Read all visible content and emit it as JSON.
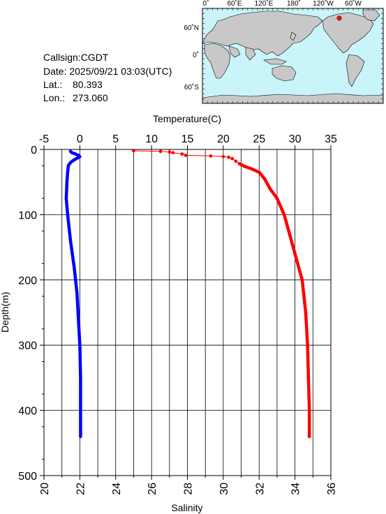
{
  "info": {
    "callsign": "Callsign:CGDT",
    "date": "Date:  2025/09/21 03:03(UTC)",
    "lat_label": "Lat.:",
    "lat_value": "80.393",
    "lon_label": "Lon.:",
    "lon_value": "273.060"
  },
  "map": {
    "top_labels": [
      "0˚",
      "60˚E",
      "120˚E",
      "180˚",
      "120˚W",
      "60˚W"
    ],
    "left_labels": [
      "60˚N",
      "0˚",
      "60˚S"
    ],
    "ocean_color": "#c8f4fa",
    "land_color": "#c8c8c8",
    "marker_color": "#ff0000"
  },
  "chart_data": {
    "type": "line",
    "ylabel": "Depth(m)",
    "x_top_label": "Temperature(C)",
    "x_bottom_label": "Salinity",
    "temperature_axis": {
      "range": [
        -5,
        35
      ],
      "ticks": [
        "-5",
        "0",
        "5",
        "10",
        "15",
        "20",
        "25",
        "30",
        "35"
      ]
    },
    "salinity_axis": {
      "range": [
        20,
        36
      ],
      "ticks": [
        "20",
        "22",
        "24",
        "26",
        "28",
        "30",
        "32",
        "34",
        "36"
      ]
    },
    "depth_axis": {
      "range": [
        0,
        500
      ],
      "ticks": [
        "0",
        "100",
        "200",
        "300",
        "400",
        "500"
      ],
      "inverted": true
    },
    "grid": true,
    "series": [
      {
        "axis": "temperature",
        "color": "#0000ff",
        "points": [
          [
            -1.3,
            3
          ],
          [
            -1.1,
            5
          ],
          [
            -0.6,
            7
          ],
          [
            -0.2,
            9
          ],
          [
            0,
            11
          ],
          [
            -0.3,
            13
          ],
          [
            -0.8,
            16
          ],
          [
            -1.3,
            20
          ],
          [
            -1.6,
            25
          ],
          [
            -1.7,
            35
          ],
          [
            -1.8,
            50
          ],
          [
            -1.9,
            75
          ],
          [
            -1.7,
            100
          ],
          [
            -1.3,
            140
          ],
          [
            -0.8,
            180
          ],
          [
            -0.4,
            220
          ],
          [
            -0.2,
            260
          ],
          [
            0,
            300
          ],
          [
            0.1,
            350
          ],
          [
            0.1,
            400
          ],
          [
            0.1,
            440
          ]
        ]
      },
      {
        "axis": "salinity",
        "color": "#ff0000",
        "points": [
          [
            25,
            2
          ],
          [
            26.5,
            3
          ],
          [
            27,
            4
          ],
          [
            27.2,
            5
          ],
          [
            27.7,
            7
          ],
          [
            27.9,
            9
          ],
          [
            29.3,
            10
          ],
          [
            30,
            11
          ],
          [
            30.3,
            12
          ],
          [
            30.5,
            14
          ],
          [
            30.7,
            18
          ],
          [
            30.9,
            22
          ],
          [
            31.2,
            26
          ],
          [
            31.6,
            30
          ],
          [
            32,
            35
          ],
          [
            32.3,
            45
          ],
          [
            32.6,
            60
          ],
          [
            33,
            75
          ],
          [
            33.4,
            100
          ],
          [
            33.7,
            130
          ],
          [
            34,
            160
          ],
          [
            34.4,
            200
          ],
          [
            34.6,
            250
          ],
          [
            34.7,
            300
          ],
          [
            34.75,
            350
          ],
          [
            34.8,
            400
          ],
          [
            34.8,
            440
          ]
        ]
      }
    ]
  }
}
